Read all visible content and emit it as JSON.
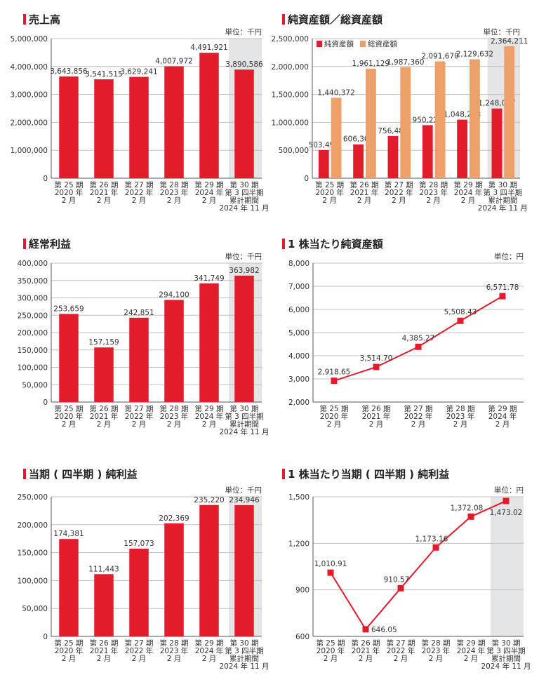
{
  "colors": {
    "red": "#e31c2b",
    "orange": "#eea06a",
    "shade": "#e4e5e7",
    "grid": "#bfbfbf",
    "axis": "#555555"
  },
  "chart_data": [
    {
      "type": "bar",
      "title": "売上高",
      "unit": "単位：千円",
      "categories": [
        [
          "第 25 期",
          "2020 年",
          "2 月"
        ],
        [
          "第 26 期",
          "2021 年",
          "2 月"
        ],
        [
          "第 27 期",
          "2022 年",
          "2 月"
        ],
        [
          "第 28 期",
          "2023 年",
          "2 月"
        ],
        [
          "第 29 期",
          "2024 年",
          "2 月"
        ],
        [
          "第 30 期",
          "第 3 四半期",
          "累計期間",
          "2024 年 11 月"
        ]
      ],
      "series": [
        {
          "values": [
            3643856,
            3541515,
            3629241,
            4007972,
            4491921,
            3890586
          ],
          "labels": [
            "3,643,856",
            "3,541,515",
            "3,629,241",
            "4,007,972",
            "4,491,921",
            "3,890,586"
          ],
          "color": "#e31c2b"
        }
      ],
      "ylim": [
        0,
        5000000
      ],
      "yticks": [
        "0",
        "1,000,000",
        "2,000,000",
        "3,000,000",
        "4,000,000",
        "5,000,000"
      ],
      "grid": true,
      "highlight_last": true
    },
    {
      "type": "bar",
      "title": "純資産額／総資産額",
      "unit": "単位：千円",
      "legend_position": "top-left",
      "categories": [
        [
          "第 25 期",
          "2020 年",
          "2 月"
        ],
        [
          "第 26 期",
          "2021 年",
          "2 月"
        ],
        [
          "第 27 期",
          "2022 年",
          "2 月"
        ],
        [
          "第 28 期",
          "2023 年",
          "2 月"
        ],
        [
          "第 29 期",
          "2024 年",
          "2 月"
        ],
        [
          "第 30 期",
          "第 3 四半期",
          "累計期間",
          "2024 年 11 月"
        ]
      ],
      "series": [
        {
          "name": "純資産額",
          "values": [
            503491,
            606309,
            756483,
            950227,
            1048223,
            1248077
          ],
          "labels": [
            "503,491",
            "606,309",
            "756,483",
            "950,227",
            "1,048,223",
            "1,248,077"
          ],
          "color": "#e31c2b"
        },
        {
          "name": "総資産額",
          "values": [
            1440372,
            1961129,
            1987360,
            2091670,
            2129632,
            2364211
          ],
          "labels": [
            "1,440,372",
            "1,961,129",
            "1,987,360",
            "2,091,670",
            "2,129,632",
            "2,364,211"
          ],
          "color": "#eea06a"
        }
      ],
      "ylim": [
        0,
        2500000
      ],
      "yticks": [
        "0",
        "500,000",
        "1,000,000",
        "1,500,000",
        "2,000,000",
        "2,500,000"
      ],
      "grid": true,
      "highlight_last": true
    },
    {
      "type": "bar",
      "title": "経常利益",
      "unit": "単位：千円",
      "categories": [
        [
          "第 25 期",
          "2020 年",
          "2 月"
        ],
        [
          "第 26 期",
          "2021 年",
          "2 月"
        ],
        [
          "第 27 期",
          "2022 年",
          "2 月"
        ],
        [
          "第 28 期",
          "2023 年",
          "2 月"
        ],
        [
          "第 29 期",
          "2024 年",
          "2 月"
        ],
        [
          "第 30 期",
          "第 3 四半期",
          "累計期間",
          "2024 年 11 月"
        ]
      ],
      "series": [
        {
          "values": [
            253659,
            157159,
            242851,
            294100,
            341749,
            363982
          ],
          "labels": [
            "253,659",
            "157,159",
            "242,851",
            "294,100",
            "341,749",
            "363,982"
          ],
          "color": "#e31c2b"
        }
      ],
      "ylim": [
        0,
        400000
      ],
      "yticks": [
        "0",
        "50,000",
        "100,000",
        "150,000",
        "200,000",
        "250,000",
        "300,000",
        "350,000",
        "400,000"
      ],
      "grid": true,
      "highlight_last": true
    },
    {
      "type": "line",
      "title": "1 株当たり純資産額",
      "unit": "単位：円",
      "categories": [
        [
          "第 25 期",
          "2020 年",
          "2 月"
        ],
        [
          "第 26 期",
          "2021 年",
          "2 月"
        ],
        [
          "第 27 期",
          "2022 年",
          "2 月"
        ],
        [
          "第 28 期",
          "2023 年",
          "2 月"
        ],
        [
          "第 29 期",
          "2024 年",
          "2 月"
        ]
      ],
      "series": [
        {
          "values": [
            2918.65,
            3514.7,
            4385.27,
            5508.43,
            6571.78
          ],
          "labels": [
            "2,918.65",
            "3,514.70",
            "4,385.27",
            "5,508.43",
            "6,571.78"
          ],
          "color": "#e31c2b"
        }
      ],
      "ylim": [
        2000,
        8000
      ],
      "yticks": [
        "2,000",
        "3,000",
        "4,000",
        "5,000",
        "6,000",
        "7,000",
        "8,000"
      ],
      "grid": true,
      "highlight_last": false
    },
    {
      "type": "bar",
      "title": "当期 ( 四半期 ) 純利益",
      "unit": "単位：千円",
      "categories": [
        [
          "第 25 期",
          "2020 年",
          "2 月"
        ],
        [
          "第 26 期",
          "2021 年",
          "2 月"
        ],
        [
          "第 27 期",
          "2022 年",
          "2 月"
        ],
        [
          "第 28 期",
          "2023 年",
          "2 月"
        ],
        [
          "第 29 期",
          "2024 年",
          "2 月"
        ],
        [
          "第 30 期",
          "第 3 四半期",
          "累計期間",
          "2024 年 11 月"
        ]
      ],
      "series": [
        {
          "values": [
            174381,
            111443,
            157073,
            202369,
            235220,
            234946
          ],
          "labels": [
            "174,381",
            "111,443",
            "157,073",
            "202,369",
            "235,220",
            "234,946"
          ],
          "color": "#e31c2b"
        }
      ],
      "ylim": [
        0,
        250000
      ],
      "yticks": [
        "0",
        "50,000",
        "100,000",
        "150,000",
        "200,000",
        "250,000"
      ],
      "grid": true,
      "highlight_last": true
    },
    {
      "type": "line",
      "title": "1 株当たり当期 ( 四半期 ) 純利益",
      "unit": "単位：円",
      "categories": [
        [
          "第 25 期",
          "2020 年",
          "2 月"
        ],
        [
          "第 26 期",
          "2021 年",
          "2 月"
        ],
        [
          "第 27 期",
          "2022 年",
          "2 月"
        ],
        [
          "第 28 期",
          "2023 年",
          "2 月"
        ],
        [
          "第 29 期",
          "2024 年",
          "2 月"
        ],
        [
          "第 30 期",
          "第 3 四半期",
          "累計期間",
          "2024 年 11 月"
        ]
      ],
      "series": [
        {
          "values": [
            1010.91,
            646.05,
            910.57,
            1173.16,
            1372.08,
            1473.02
          ],
          "labels": [
            "1,010.91",
            "646.05",
            "910.57",
            "1,173.16",
            "1,372.08",
            "1,473.02"
          ],
          "color": "#e31c2b"
        }
      ],
      "ylim": [
        600,
        1500
      ],
      "yticks": [
        "600",
        "900",
        "1,200",
        "1,500"
      ],
      "grid": true,
      "highlight_last": true
    }
  ]
}
